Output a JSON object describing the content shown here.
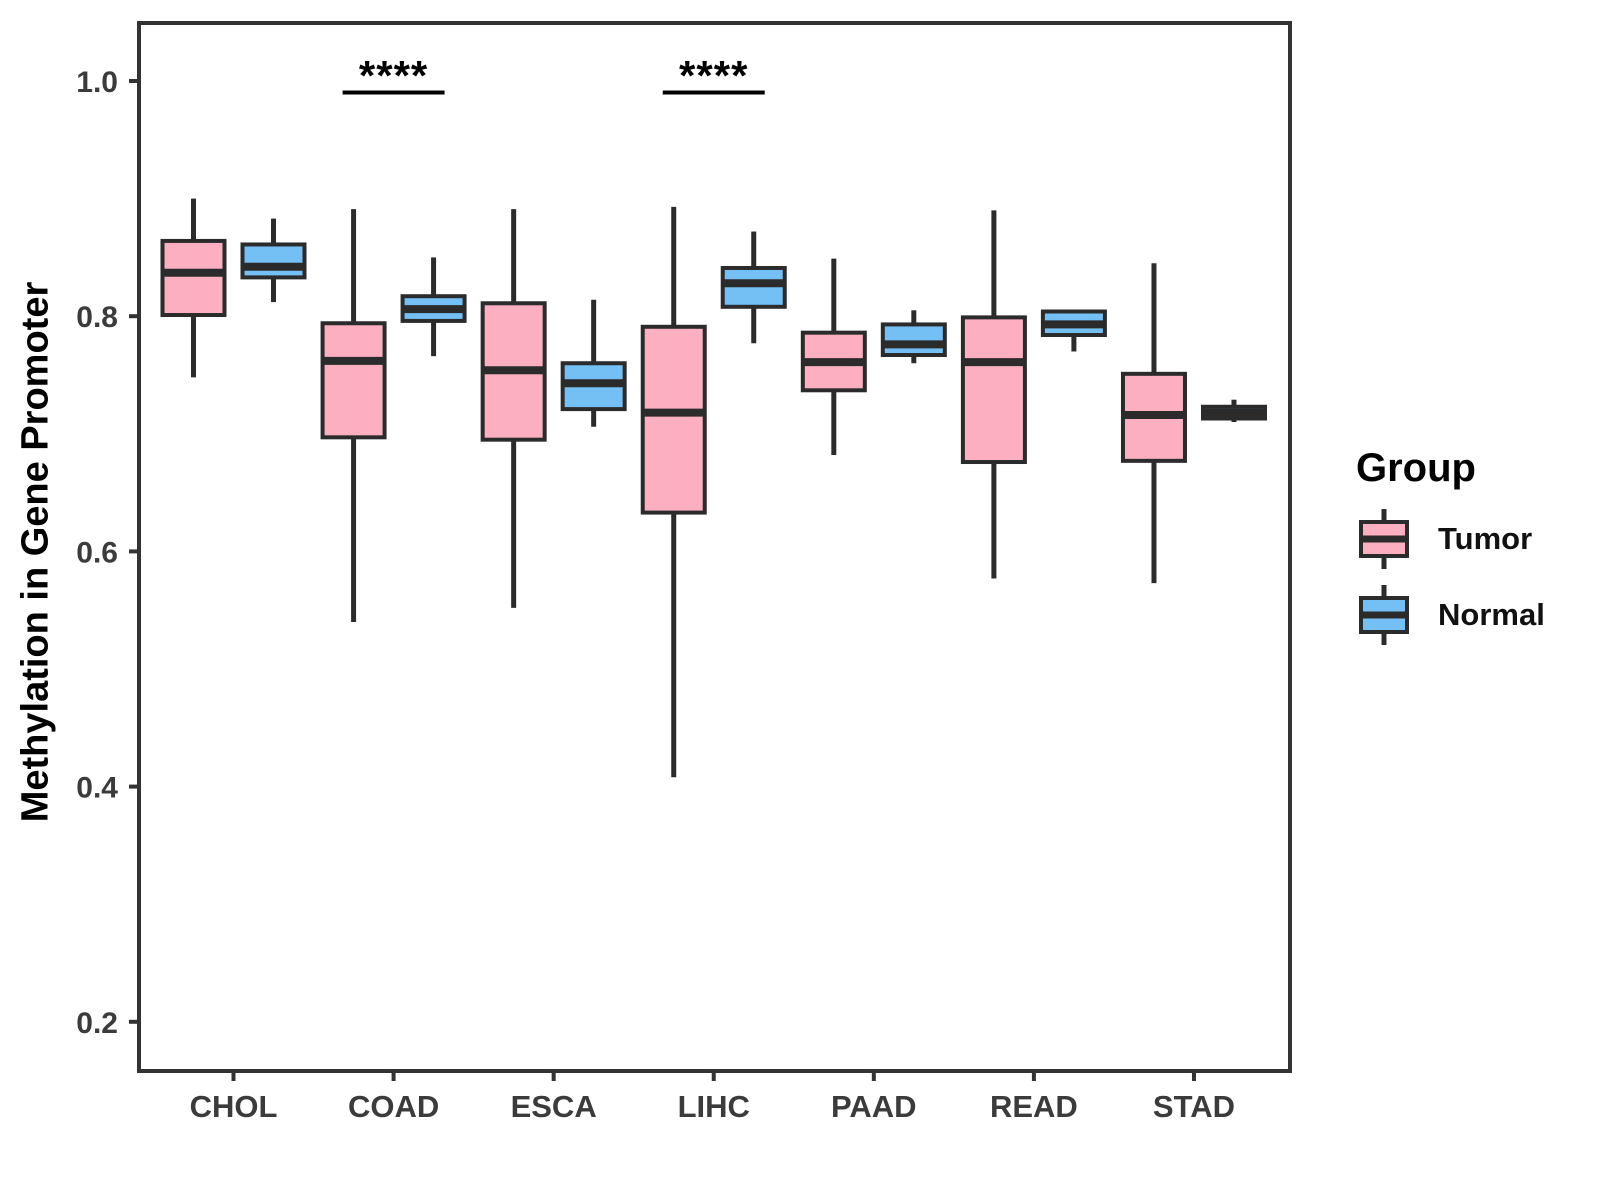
{
  "chart_data": {
    "type": "boxplot",
    "title": "",
    "ylabel": "Methylation in Gene Promoter",
    "xlabel": "",
    "ylim": [
      0.16,
      1.05
    ],
    "yticks": [
      1.0,
      0.8,
      0.6,
      0.4,
      0.2
    ],
    "ytick_labels": [
      "1.0",
      "0.8",
      "0.6",
      "0.4",
      "0.2"
    ],
    "categories": [
      "CHOL",
      "COAD",
      "ESCA",
      "LIHC",
      "PAAD",
      "READ",
      "STAD"
    ],
    "grid": false,
    "legend_position": "right",
    "legend": {
      "title": "Group",
      "items": [
        {
          "label": "Tumor",
          "color": "#FBAFC1"
        },
        {
          "label": "Normal",
          "color": "#74BFF4"
        }
      ]
    },
    "series": [
      {
        "name": "Tumor",
        "color": "#FBAFC1",
        "boxes": [
          {
            "category": "CHOL",
            "min": 0.748,
            "q1": 0.801,
            "median": 0.837,
            "q3": 0.864,
            "max": 0.9
          },
          {
            "category": "COAD",
            "min": 0.54,
            "q1": 0.697,
            "median": 0.762,
            "q3": 0.794,
            "max": 0.891
          },
          {
            "category": "ESCA",
            "min": 0.552,
            "q1": 0.695,
            "median": 0.754,
            "q3": 0.811,
            "max": 0.891
          },
          {
            "category": "LIHC",
            "min": 0.408,
            "q1": 0.633,
            "median": 0.718,
            "q3": 0.791,
            "max": 0.893
          },
          {
            "category": "PAAD",
            "min": 0.682,
            "q1": 0.737,
            "median": 0.761,
            "q3": 0.786,
            "max": 0.849
          },
          {
            "category": "READ",
            "min": 0.577,
            "q1": 0.676,
            "median": 0.761,
            "q3": 0.799,
            "max": 0.89
          },
          {
            "category": "STAD",
            "min": 0.573,
            "q1": 0.677,
            "median": 0.716,
            "q3": 0.751,
            "max": 0.845
          }
        ]
      },
      {
        "name": "Normal",
        "color": "#74BFF4",
        "boxes": [
          {
            "category": "CHOL",
            "min": 0.812,
            "q1": 0.833,
            "median": 0.842,
            "q3": 0.861,
            "max": 0.883
          },
          {
            "category": "COAD",
            "min": 0.766,
            "q1": 0.796,
            "median": 0.806,
            "q3": 0.817,
            "max": 0.85
          },
          {
            "category": "ESCA",
            "min": 0.706,
            "q1": 0.721,
            "median": 0.743,
            "q3": 0.76,
            "max": 0.814
          },
          {
            "category": "LIHC",
            "min": 0.777,
            "q1": 0.808,
            "median": 0.828,
            "q3": 0.841,
            "max": 0.872
          },
          {
            "category": "PAAD",
            "min": 0.76,
            "q1": 0.767,
            "median": 0.776,
            "q3": 0.793,
            "max": 0.805
          },
          {
            "category": "READ",
            "min": 0.77,
            "q1": 0.784,
            "median": 0.793,
            "q3": 0.804,
            "max": 0.804
          },
          {
            "category": "STAD",
            "min": 0.71,
            "q1": 0.713,
            "median": 0.718,
            "q3": 0.723,
            "max": 0.729
          }
        ]
      }
    ],
    "annotations": [
      {
        "category": "COAD",
        "label": "****"
      },
      {
        "category": "LIHC",
        "label": "****"
      }
    ]
  },
  "colors": {
    "box_border": "#2B2B2B",
    "panel_border": "#333333",
    "axis_text": "#3B3B3B",
    "annotation": "#000000",
    "background": "#FFFFFF"
  }
}
